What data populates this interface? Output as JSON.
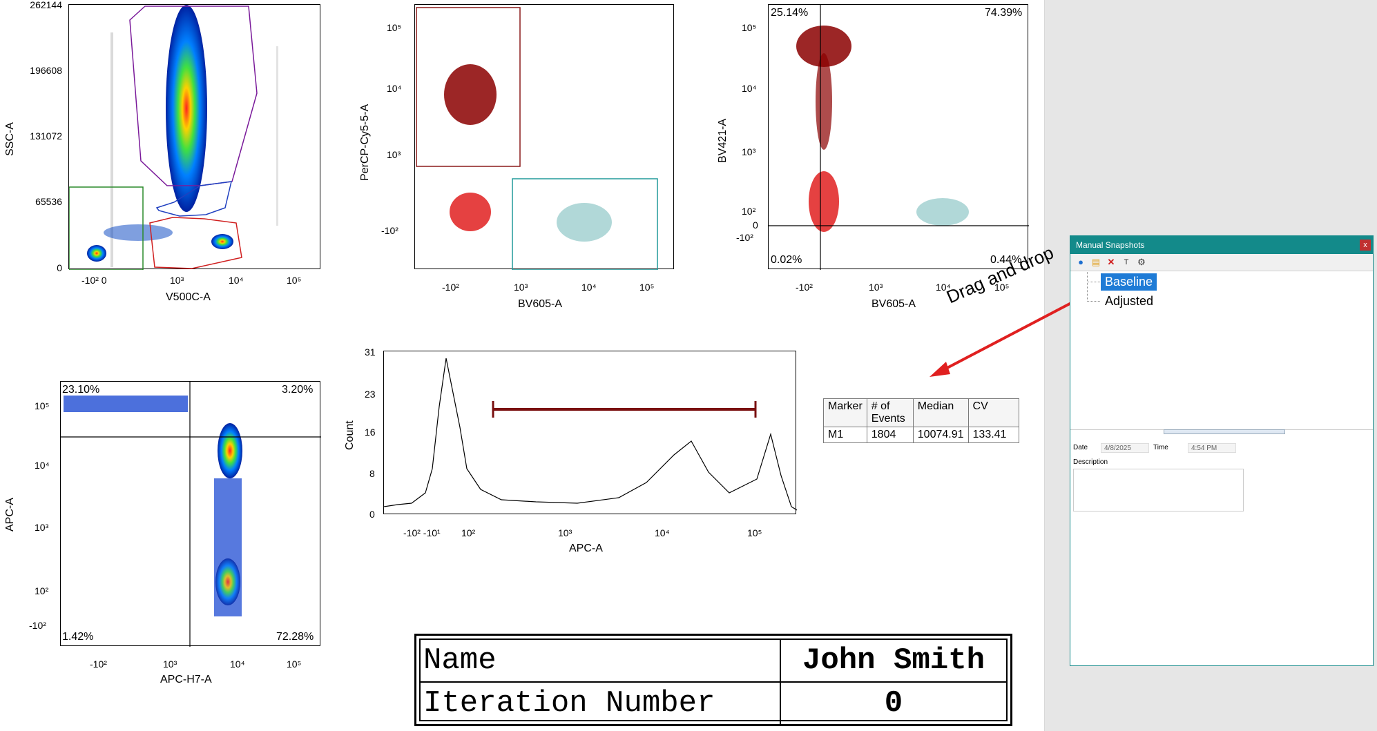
{
  "plots": {
    "p1": {
      "xlabel": "V500C-A",
      "ylabel": "SSC-A",
      "yticks": [
        "262144",
        "196608",
        "131072",
        "65536",
        "0"
      ],
      "xticks": [
        "-10² 0",
        "10³",
        "10⁴",
        "10⁵"
      ]
    },
    "p2": {
      "xlabel": "BV605-A",
      "ylabel": "PerCP-Cy5-5-A",
      "yticks": [
        "10⁵",
        "10⁴",
        "10³",
        "-10²"
      ],
      "xticks": [
        "-10²",
        "10³",
        "10⁴",
        "10⁵"
      ]
    },
    "p3": {
      "xlabel": "BV605-A",
      "ylabel": "BV421-A",
      "yticks": [
        "10⁵",
        "10⁴",
        "10³",
        "10²",
        "0",
        "-10²"
      ],
      "xticks": [
        "-10²",
        "10³",
        "10⁴",
        "10⁵"
      ],
      "quadrants": {
        "ul": "25.14%",
        "ur": "74.39%",
        "ll": "0.02%",
        "lr": "0.44%"
      }
    },
    "p4": {
      "xlabel": "APC-H7-A",
      "ylabel": "APC-A",
      "yticks": [
        "10⁵",
        "10⁴",
        "10³",
        "10²",
        "-10²"
      ],
      "xticks": [
        "-10²",
        "10³",
        "10⁴",
        "10⁵"
      ],
      "quadrants": {
        "ul": "23.10%",
        "ur": "3.20%",
        "ll": "1.42%",
        "lr": "72.28%"
      }
    },
    "p5": {
      "xlabel": "APC-A",
      "ylabel": "Count",
      "yticks": [
        "31",
        "23",
        "16",
        "8",
        "0"
      ],
      "xticks": [
        "-10² -10¹",
        "10²",
        "10³",
        "10⁴",
        "10⁵"
      ]
    }
  },
  "stats_table": {
    "headers": [
      "Marker",
      "# of Events",
      "Median",
      "CV"
    ],
    "rows": [
      [
        "M1",
        "1804",
        "10074.91",
        "133.41"
      ]
    ]
  },
  "name_box": {
    "name_label": "Name",
    "name_value": "John Smith",
    "iter_label": "Iteration Number",
    "iter_value": "0"
  },
  "annotation": "Drag and drop",
  "snapshots": {
    "title": "Manual Snapshots",
    "close": "x",
    "items": [
      "Baseline",
      "Adjusted"
    ],
    "selected": "Baseline",
    "date_label": "Date",
    "date_value": "4/8/2025",
    "time_label": "Time",
    "time_value": "4:54 PM",
    "description_label": "Description"
  },
  "colors": {
    "accent": "#138a8a",
    "selection": "#1e7bd6",
    "arrow": "#e02020",
    "gate_dark_red": "#8b1a1a"
  }
}
